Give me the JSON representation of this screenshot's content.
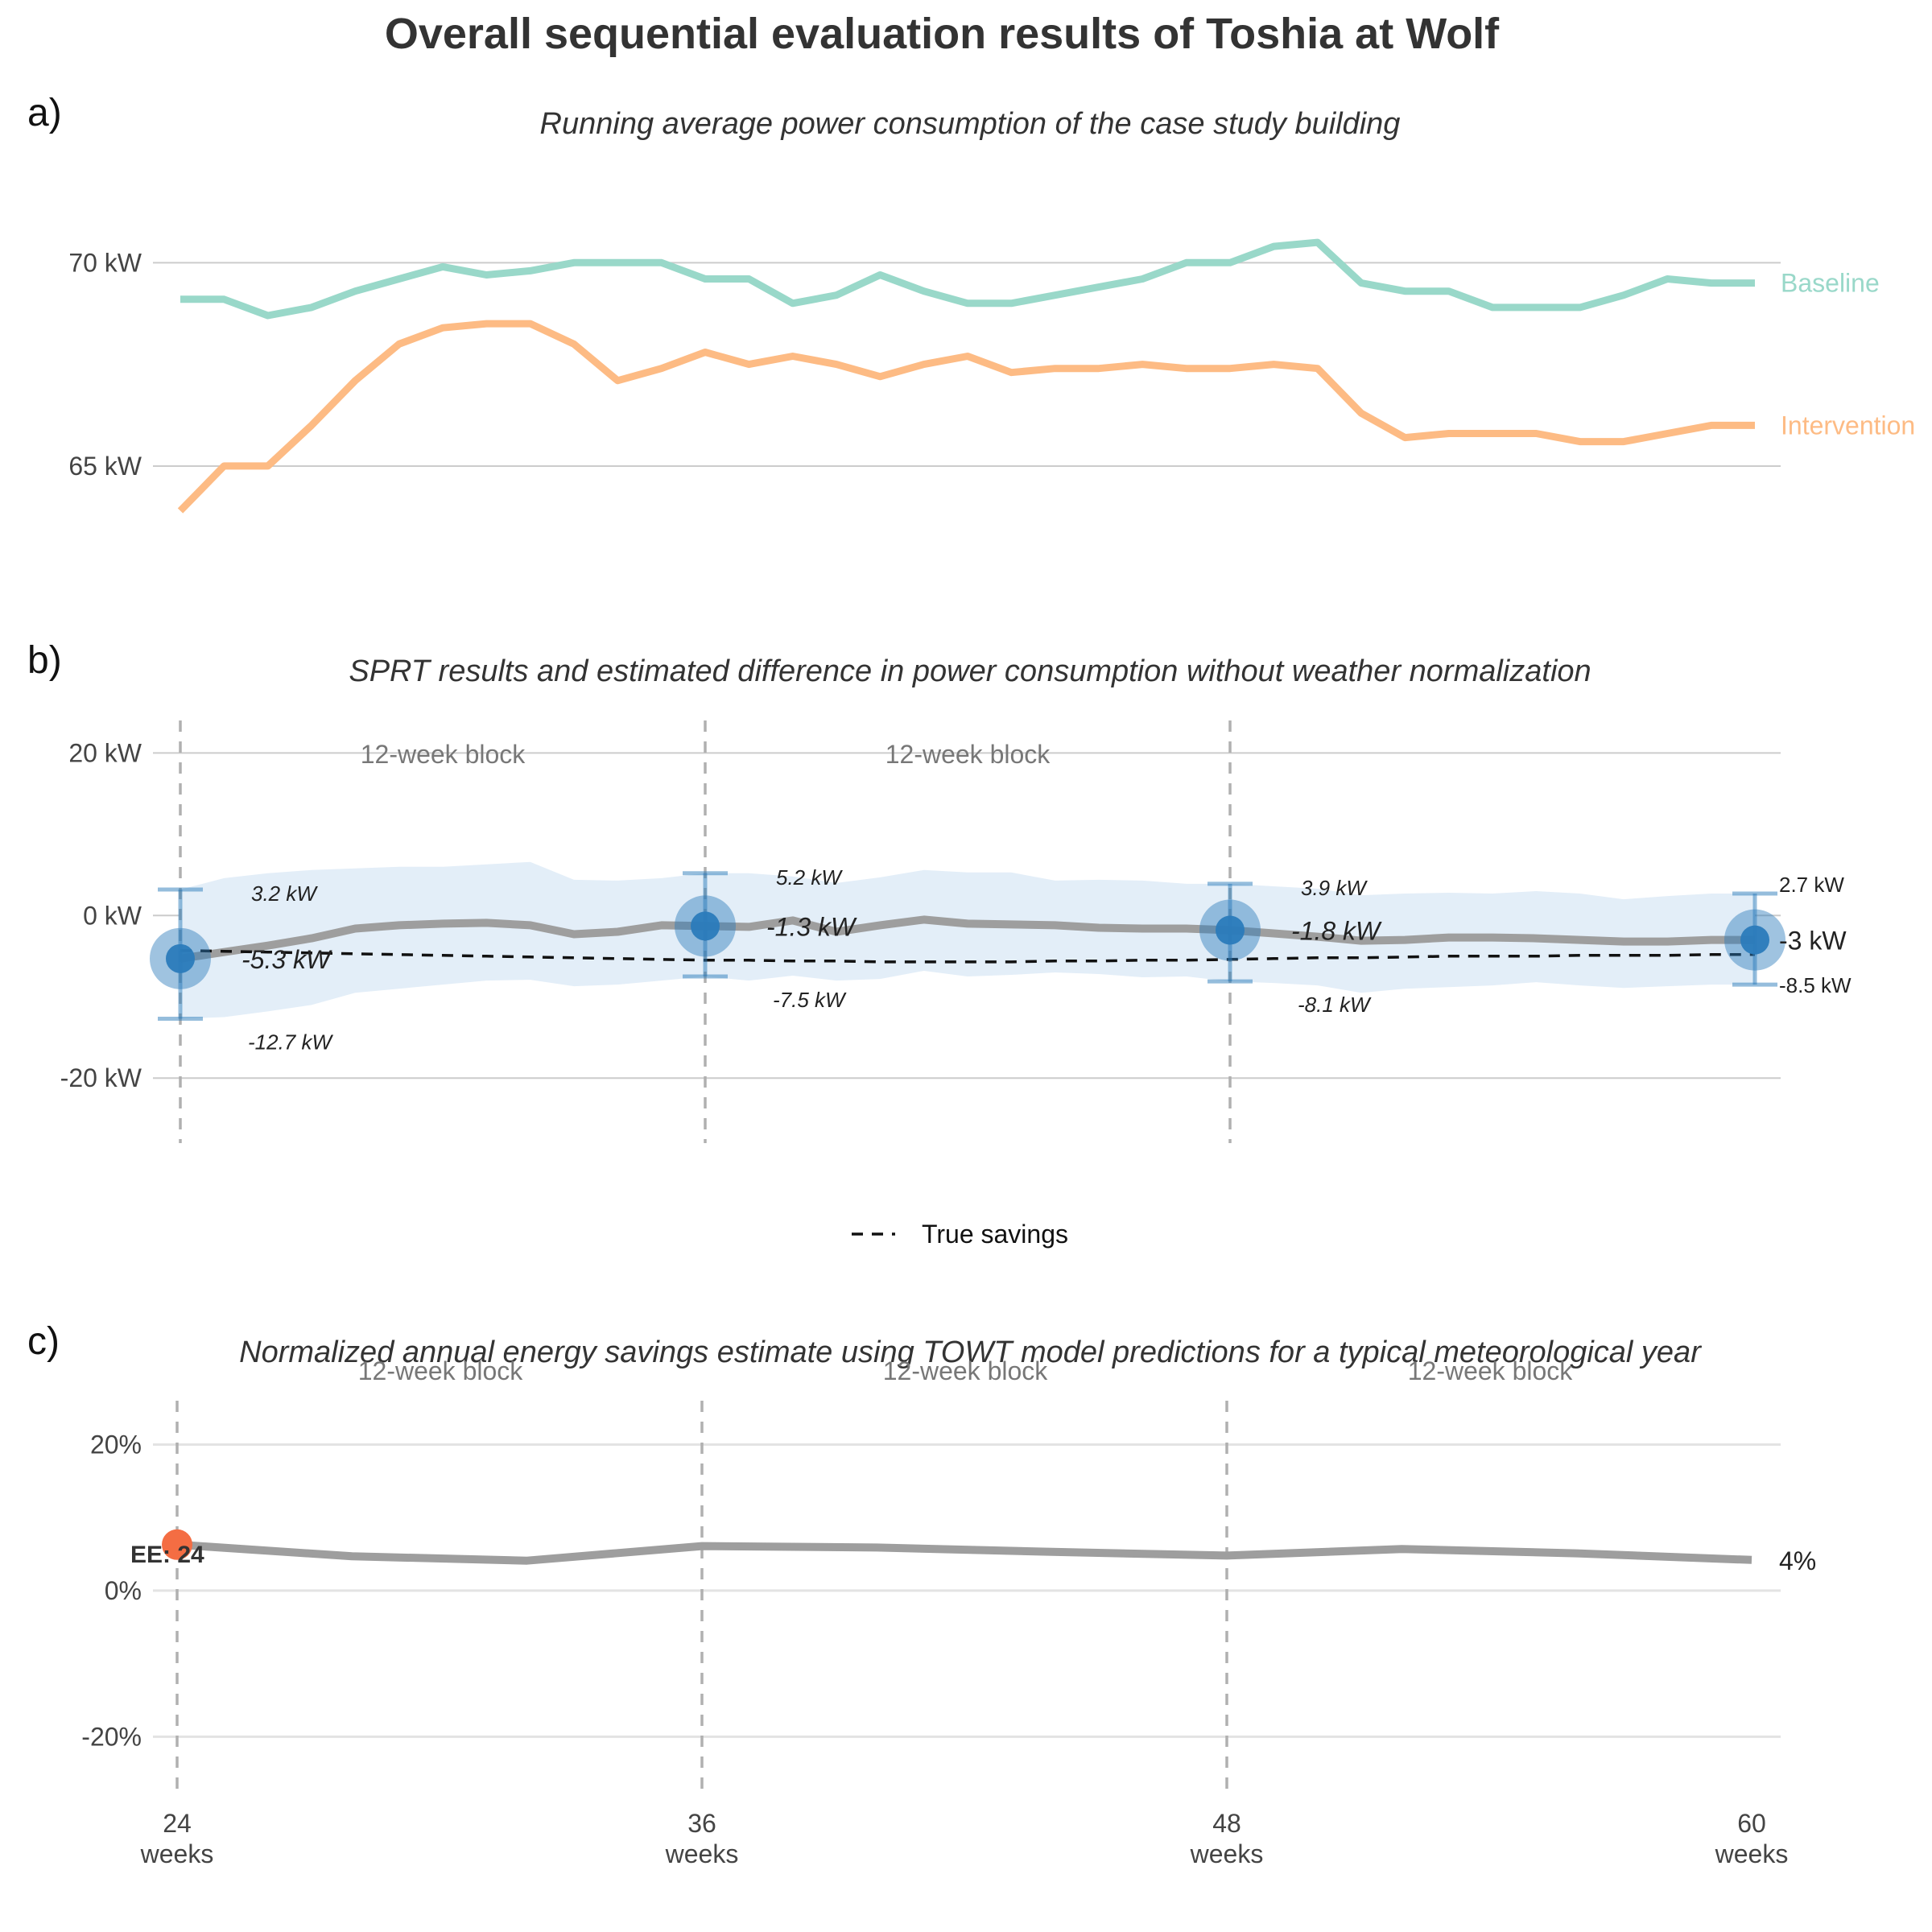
{
  "title": "Overall sequential evaluation results of Toshia at Wolf",
  "colors": {
    "baseline": "#99d8c9",
    "intervention": "#fdbb84",
    "estimate_line": "#9e9e9e",
    "ci_band": "#e3eef8",
    "marker": "#2b7bba",
    "ee_marker": "#f46d43"
  },
  "x_ticks": [
    {
      "value": 24,
      "label": "24",
      "unit": "weeks"
    },
    {
      "value": 36,
      "label": "36",
      "unit": "weeks"
    },
    {
      "value": 48,
      "label": "48",
      "unit": "weeks"
    },
    {
      "value": 60,
      "label": "60",
      "unit": "weeks"
    }
  ],
  "chart_data": [
    {
      "panel": "a)",
      "type": "line",
      "subtitle": "Running average power consumption of the case study building",
      "ylim": [
        63,
        72.5
      ],
      "yticks": [
        {
          "value": 65,
          "label": "65 kW"
        },
        {
          "value": 70,
          "label": "70 kW"
        }
      ],
      "xlim": [
        24,
        60
      ],
      "x": [
        24,
        25,
        26,
        27,
        28,
        29,
        30,
        31,
        32,
        33,
        34,
        35,
        36,
        37,
        38,
        39,
        40,
        41,
        42,
        43,
        44,
        45,
        46,
        47,
        48,
        49,
        50,
        51,
        52,
        53,
        54,
        55,
        56,
        57,
        58,
        59,
        60
      ],
      "series": [
        {
          "name": "Baseline",
          "values": [
            69.1,
            69.1,
            68.7,
            68.9,
            69.3,
            69.6,
            69.9,
            69.7,
            69.8,
            70.0,
            70.0,
            70.0,
            69.6,
            69.6,
            69.0,
            69.2,
            69.7,
            69.3,
            69.0,
            69.0,
            69.2,
            69.4,
            69.6,
            70.0,
            70.0,
            70.4,
            70.5,
            69.5,
            69.3,
            69.3,
            68.9,
            68.9,
            68.9,
            69.2,
            69.6,
            69.5,
            69.5
          ]
        },
        {
          "name": "Intervention",
          "values": [
            63.9,
            65.0,
            65.0,
            66.0,
            67.1,
            68.0,
            68.4,
            68.5,
            68.5,
            68.0,
            67.1,
            67.4,
            67.8,
            67.5,
            67.7,
            67.5,
            67.2,
            67.5,
            67.7,
            67.3,
            67.4,
            67.4,
            67.5,
            67.4,
            67.4,
            67.5,
            67.4,
            66.3,
            65.7,
            65.8,
            65.8,
            65.8,
            65.6,
            65.6,
            65.8,
            66.0,
            66.0
          ]
        }
      ]
    },
    {
      "panel": "b)",
      "type": "line",
      "subtitle": "SPRT results and estimated difference in power consumption without weather normalization",
      "ylim": [
        -28,
        24
      ],
      "yticks": [
        {
          "value": -20,
          "label": "-20 kW"
        },
        {
          "value": 0,
          "label": "0 kW"
        },
        {
          "value": 20,
          "label": "20 kW"
        }
      ],
      "xlim": [
        24,
        60
      ],
      "block_labels": [
        {
          "x_start": 24,
          "x_end": 36,
          "text": "12-week block"
        },
        {
          "x_start": 36,
          "x_end": 48,
          "text": "12-week block"
        }
      ],
      "x": [
        24,
        25,
        26,
        27,
        28,
        29,
        30,
        31,
        32,
        33,
        34,
        35,
        36,
        37,
        38,
        39,
        40,
        41,
        42,
        43,
        44,
        45,
        46,
        47,
        48,
        49,
        50,
        51,
        52,
        53,
        54,
        55,
        56,
        57,
        58,
        59,
        60
      ],
      "estimate": [
        -5.3,
        -4.5,
        -3.7,
        -2.8,
        -1.6,
        -1.2,
        -1.0,
        -0.9,
        -1.2,
        -2.3,
        -2.0,
        -1.2,
        -1.3,
        -1.4,
        -0.6,
        -2.0,
        -1.2,
        -0.5,
        -1.0,
        -1.1,
        -1.2,
        -1.5,
        -1.6,
        -1.6,
        -1.8,
        -2.2,
        -2.6,
        -3.1,
        -3.0,
        -2.7,
        -2.7,
        -2.8,
        -3.0,
        -3.2,
        -3.2,
        -3.0,
        -3.0
      ],
      "ci_upper": [
        3.2,
        4.6,
        5.2,
        5.6,
        5.8,
        6.0,
        6.0,
        6.3,
        6.6,
        4.4,
        4.3,
        4.6,
        5.2,
        5.2,
        4.8,
        4.0,
        4.7,
        5.6,
        5.3,
        5.3,
        4.3,
        4.4,
        4.3,
        3.9,
        3.9,
        3.6,
        3.3,
        2.5,
        2.7,
        2.8,
        2.7,
        3.0,
        2.7,
        2.0,
        2.4,
        2.7,
        2.7
      ],
      "ci_lower": [
        -12.7,
        -12.5,
        -11.8,
        -11.0,
        -9.5,
        -9.0,
        -8.5,
        -8.0,
        -7.9,
        -8.7,
        -8.5,
        -8.0,
        -7.5,
        -8.0,
        -7.4,
        -8.0,
        -7.8,
        -6.8,
        -7.5,
        -7.3,
        -7.0,
        -7.2,
        -7.6,
        -7.5,
        -8.1,
        -8.3,
        -8.6,
        -9.5,
        -9.0,
        -8.8,
        -8.6,
        -8.2,
        -8.6,
        -8.9,
        -8.7,
        -8.5,
        -8.5
      ],
      "true_savings": {
        "name": "True savings",
        "values": [
          -4.3,
          -4.4,
          -4.5,
          -4.6,
          -4.7,
          -4.8,
          -4.9,
          -5.0,
          -5.1,
          -5.2,
          -5.3,
          -5.4,
          -5.5,
          -5.5,
          -5.6,
          -5.6,
          -5.7,
          -5.7,
          -5.7,
          -5.7,
          -5.6,
          -5.6,
          -5.5,
          -5.5,
          -5.4,
          -5.3,
          -5.2,
          -5.2,
          -5.1,
          -5.0,
          -5.0,
          -5.0,
          -4.9,
          -4.9,
          -4.9,
          -4.8,
          -4.8
        ]
      },
      "checkpoints": [
        {
          "x": 24,
          "estimate": -5.3,
          "upper": 3.2,
          "lower": -12.7,
          "estimate_label": "-5.3 kW",
          "upper_label": "3.2 kW",
          "lower_label": "-12.7 kW"
        },
        {
          "x": 36,
          "estimate": -1.3,
          "upper": 5.2,
          "lower": -7.5,
          "estimate_label": "-1.3 kW",
          "upper_label": "5.2 kW",
          "lower_label": "-7.5 kW"
        },
        {
          "x": 48,
          "estimate": -1.8,
          "upper": 3.9,
          "lower": -8.1,
          "estimate_label": "-1.8 kW",
          "upper_label": "3.9 kW",
          "lower_label": "-8.1 kW"
        },
        {
          "x": 60,
          "estimate": -3.0,
          "upper": 2.7,
          "lower": -8.5,
          "estimate_label": "-3 kW",
          "upper_label": "2.7 kW",
          "lower_label": "-8.5 kW"
        }
      ],
      "legend": {
        "position": "bottom",
        "entries": [
          "True savings"
        ]
      }
    },
    {
      "panel": "c)",
      "type": "line",
      "subtitle": "Normalized annual energy savings estimate using TOWT model predictions for a typical meteorological year",
      "ylim": [
        -28,
        26
      ],
      "yticks": [
        {
          "value": -20,
          "label": "-20%"
        },
        {
          "value": 0,
          "label": "0%"
        },
        {
          "value": 20,
          "label": "20%"
        }
      ],
      "xlim": [
        24,
        60
      ],
      "block_labels": [
        {
          "x_start": 24,
          "x_end": 36,
          "text": "12-week block"
        },
        {
          "x_start": 36,
          "x_end": 48,
          "text": "12-week block"
        },
        {
          "x_start": 48,
          "x_end": 60,
          "text": "12-week block"
        }
      ],
      "x": [
        24,
        28,
        32,
        36,
        40,
        44,
        48,
        52,
        56,
        60
      ],
      "values": [
        6.3,
        4.7,
        4.1,
        6.1,
        5.9,
        5.3,
        4.8,
        5.7,
        5.1,
        4.2
      ],
      "end_label": "4%",
      "early_end": {
        "x": 24,
        "value": 6.3,
        "label": "EE: 24"
      }
    }
  ]
}
